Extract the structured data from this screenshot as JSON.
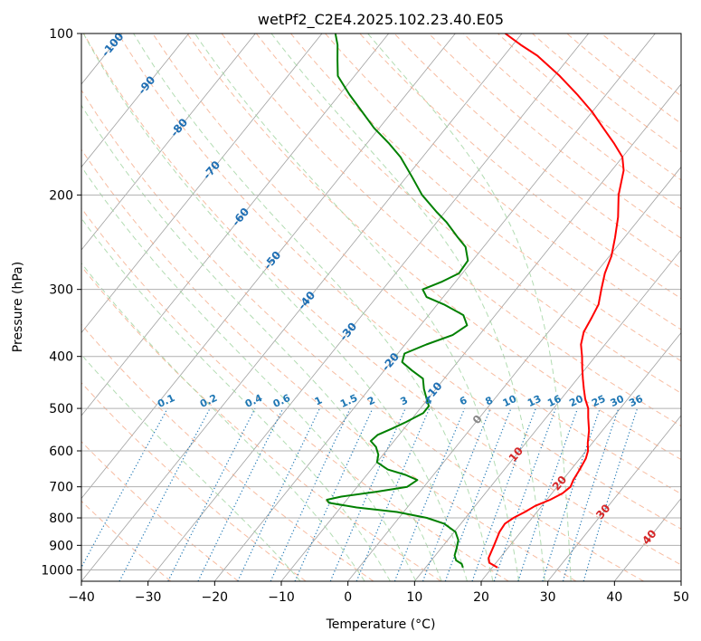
{
  "chart_data": {
    "type": "line",
    "chart_kind": "skew-t log-p diagram",
    "title": "wetPf2_C2E4.2025.102.23.40.E05",
    "xlabel": "Temperature (°C)",
    "ylabel": "Pressure (hPa)",
    "xlim": [
      -40,
      50
    ],
    "ylim": [
      1050,
      100
    ],
    "y_scale": "log",
    "x_ticks": [
      -40,
      -30,
      -20,
      -10,
      0,
      10,
      20,
      30,
      40,
      50
    ],
    "x_tick_labels": [
      "−40",
      "−30",
      "−20",
      "−10",
      "0",
      "10",
      "20",
      "30",
      "40",
      "50"
    ],
    "y_ticks": [
      100,
      200,
      300,
      400,
      500,
      600,
      700,
      800,
      900,
      1000
    ],
    "y_tick_labels": [
      "100",
      "200",
      "300",
      "400",
      "500",
      "600",
      "700",
      "800",
      "900",
      "1000"
    ],
    "grid": true,
    "skew_isotherms": {
      "color": "#a0a0a0",
      "values": [
        -160,
        -150,
        -140,
        -130,
        -120,
        -110,
        -100,
        -90,
        -80,
        -70,
        -60,
        -50,
        -40,
        -30,
        -20,
        -10,
        0,
        10,
        20,
        30,
        40,
        50
      ]
    },
    "dry_adiabats": {
      "color": "#f4a582",
      "style": "dashed",
      "theta_c": [
        -30,
        -20,
        -10,
        0,
        10,
        20,
        30,
        40,
        50,
        60,
        70,
        80,
        90,
        100,
        110,
        120,
        130,
        140,
        150,
        160,
        170,
        180,
        190,
        200
      ]
    },
    "moist_adiabats": {
      "color": "#9fd39f",
      "style": "dashed",
      "theta_w_c": [
        -10,
        0,
        4,
        8,
        12,
        16,
        20,
        24,
        28,
        32
      ]
    },
    "mixing_ratio_lines": {
      "color": "#1f77b4",
      "style": "dotted",
      "label_pressure": 500,
      "values": [
        0.1,
        0.2,
        0.4,
        0.6,
        1,
        1.5,
        2,
        3,
        4,
        6,
        8,
        10,
        13,
        16,
        20,
        25,
        30,
        36
      ],
      "labels": [
        "0.1",
        "0.2",
        "0.4",
        "0.6",
        "1",
        "1.5",
        "2",
        "3",
        "4",
        "6",
        "8",
        "10",
        "13",
        "16",
        "20",
        "25",
        "30",
        "36"
      ]
    },
    "isotherm_labels_cold": {
      "color": "#1f6fb4",
      "items": [
        {
          "label": "-100",
          "T": -100,
          "p": 105
        },
        {
          "label": "-90",
          "T": -90,
          "p": 125
        },
        {
          "label": "-80",
          "T": -80,
          "p": 150
        },
        {
          "label": "-70",
          "T": -70,
          "p": 180
        },
        {
          "label": "-60",
          "T": -60,
          "p": 220
        },
        {
          "label": "-50",
          "T": -50,
          "p": 265
        },
        {
          "label": "-40",
          "T": -40,
          "p": 315
        },
        {
          "label": "-30",
          "T": -30,
          "p": 360
        },
        {
          "label": "-20",
          "T": -20,
          "p": 410
        },
        {
          "label": "-10",
          "T": -10,
          "p": 465
        }
      ]
    },
    "isotherm_labels_warm": {
      "items": [
        {
          "label": "0",
          "T": 0,
          "p": 525,
          "color": "#888888"
        },
        {
          "label": "10",
          "T": 10,
          "p": 610,
          "color": "#d62728"
        },
        {
          "label": "20",
          "T": 20,
          "p": 690,
          "color": "#d62728"
        },
        {
          "label": "30",
          "T": 30,
          "p": 780,
          "color": "#d62728"
        },
        {
          "label": "40",
          "T": 40,
          "p": 870,
          "color": "#d62728"
        }
      ]
    },
    "series": [
      {
        "role": "temperature",
        "color": "#ff0000",
        "points": [
          [
            990,
            20.8
          ],
          [
            970,
            19.0
          ],
          [
            950,
            18.3
          ],
          [
            900,
            17.6
          ],
          [
            850,
            16.8
          ],
          [
            820,
            16.6
          ],
          [
            800,
            17.2
          ],
          [
            780,
            18.2
          ],
          [
            760,
            19.0
          ],
          [
            740,
            20.5
          ],
          [
            720,
            21.6
          ],
          [
            700,
            22.0
          ],
          [
            680,
            21.6
          ],
          [
            650,
            21.3
          ],
          [
            620,
            20.9
          ],
          [
            600,
            20.3
          ],
          [
            580,
            19.3
          ],
          [
            550,
            18.0
          ],
          [
            520,
            16.3
          ],
          [
            500,
            15.2
          ],
          [
            480,
            13.6
          ],
          [
            460,
            12.2
          ],
          [
            440,
            10.8
          ],
          [
            420,
            9.4
          ],
          [
            400,
            8.0
          ],
          [
            380,
            6.4
          ],
          [
            360,
            5.3
          ],
          [
            340,
            4.8
          ],
          [
            320,
            4.2
          ],
          [
            300,
            2.8
          ],
          [
            280,
            1.4
          ],
          [
            260,
            0.3
          ],
          [
            240,
            -1.4
          ],
          [
            220,
            -3.4
          ],
          [
            200,
            -6.0
          ],
          [
            180,
            -8.2
          ],
          [
            170,
            -10.0
          ],
          [
            160,
            -13.0
          ],
          [
            150,
            -16.4
          ],
          [
            140,
            -20.0
          ],
          [
            130,
            -24.3
          ],
          [
            120,
            -29.2
          ],
          [
            110,
            -35.0
          ],
          [
            105,
            -38.8
          ],
          [
            100,
            -42.5
          ]
        ]
      },
      {
        "role": "dewpoint",
        "color": "#008000",
        "points": [
          [
            990,
            15.6
          ],
          [
            975,
            15.0
          ],
          [
            960,
            13.7
          ],
          [
            940,
            12.9
          ],
          [
            910,
            12.3
          ],
          [
            880,
            11.6
          ],
          [
            850,
            10.2
          ],
          [
            820,
            7.5
          ],
          [
            800,
            4.2
          ],
          [
            780,
            -1.0
          ],
          [
            765,
            -7.6
          ],
          [
            750,
            -12.3
          ],
          [
            740,
            -13.0
          ],
          [
            730,
            -11.2
          ],
          [
            715,
            -6.5
          ],
          [
            700,
            -2.5
          ],
          [
            680,
            -1.8
          ],
          [
            665,
            -4.2
          ],
          [
            650,
            -7.5
          ],
          [
            630,
            -10.0
          ],
          [
            610,
            -10.7
          ],
          [
            590,
            -12.0
          ],
          [
            575,
            -13.5
          ],
          [
            560,
            -13.2
          ],
          [
            545,
            -11.8
          ],
          [
            530,
            -10.5
          ],
          [
            510,
            -9.0
          ],
          [
            495,
            -9.0
          ],
          [
            480,
            -10.2
          ],
          [
            460,
            -11.8
          ],
          [
            440,
            -13.2
          ],
          [
            425,
            -15.8
          ],
          [
            410,
            -18.3
          ],
          [
            395,
            -19.0
          ],
          [
            380,
            -16.8
          ],
          [
            365,
            -14.0
          ],
          [
            350,
            -13.0
          ],
          [
            335,
            -14.8
          ],
          [
            320,
            -19.0
          ],
          [
            310,
            -22.5
          ],
          [
            300,
            -24.0
          ],
          [
            290,
            -22.0
          ],
          [
            280,
            -20.5
          ],
          [
            265,
            -20.7
          ],
          [
            250,
            -22.7
          ],
          [
            240,
            -25.0
          ],
          [
            225,
            -28.5
          ],
          [
            215,
            -31.3
          ],
          [
            200,
            -35.5
          ],
          [
            185,
            -39.2
          ],
          [
            170,
            -43.3
          ],
          [
            160,
            -46.8
          ],
          [
            150,
            -50.8
          ],
          [
            140,
            -54.5
          ],
          [
            130,
            -58.5
          ],
          [
            120,
            -62.5
          ],
          [
            112,
            -64.5
          ],
          [
            105,
            -66.3
          ],
          [
            100,
            -68.0
          ]
        ]
      }
    ]
  }
}
